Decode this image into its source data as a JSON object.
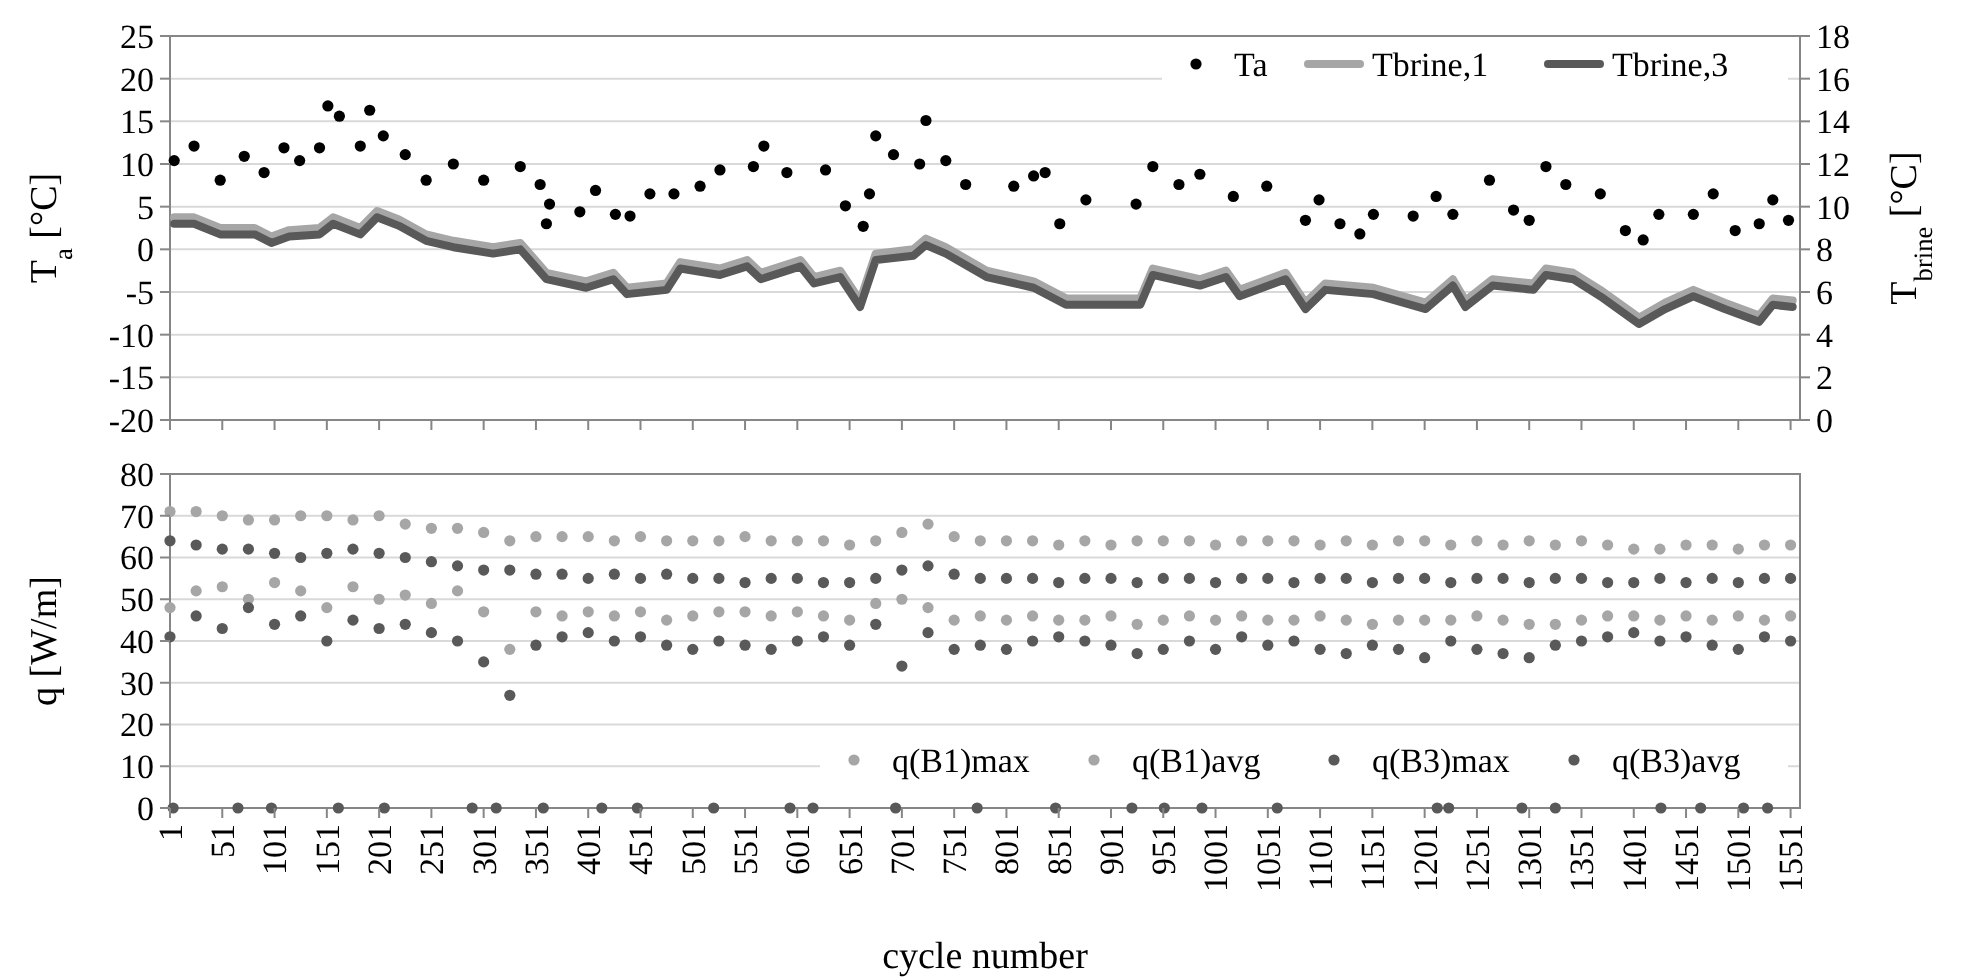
{
  "chart_data": [
    {
      "type": "line",
      "ylabel": "T$_{a}$ [°C]",
      "y2label": "T$_{brine}$ [°C]",
      "xlim": [
        1,
        1560
      ],
      "xticks": [
        1,
        51,
        101,
        151,
        201,
        251,
        301,
        351,
        401,
        451,
        501,
        551,
        601,
        651,
        701,
        751,
        801,
        851,
        901,
        951,
        1001,
        1051,
        1101,
        1151,
        1201,
        1251,
        1301,
        1351,
        1401,
        1451,
        1501,
        1551
      ],
      "ylim": [
        -20,
        25
      ],
      "yticks": [
        -20,
        -15,
        -10,
        -5,
        0,
        5,
        10,
        15,
        20,
        25
      ],
      "y2lim": [
        0,
        18
      ],
      "y2ticks": [
        0,
        2,
        4,
        6,
        8,
        10,
        12,
        14,
        16,
        18
      ],
      "grid": "y",
      "legend": "top right",
      "tick_labels": "y",
      "series": [
        {
          "name": "Ta",
          "type": "scatter",
          "marker": "circle",
          "color": "#000000",
          "x": [
            5,
            24,
            49,
            72,
            91,
            110,
            125,
            144,
            152,
            163,
            183,
            192,
            205,
            226,
            246,
            272,
            301,
            336,
            355,
            361,
            364,
            393,
            408,
            427,
            441,
            460,
            483,
            508,
            527,
            559,
            569,
            591,
            628,
            647,
            664,
            670,
            676,
            693,
            718,
            724,
            743,
            762,
            808,
            827,
            838,
            852,
            877,
            925,
            941,
            966,
            986,
            1018,
            1050,
            1087,
            1100,
            1120,
            1139,
            1152,
            1190,
            1212,
            1228,
            1263,
            1286,
            1301,
            1317,
            1336,
            1369,
            1393,
            1410,
            1425,
            1458,
            1477,
            1498,
            1521,
            1534,
            1549
          ],
          "values": [
            10.4,
            12.1,
            8.1,
            10.9,
            9.0,
            11.9,
            10.4,
            11.9,
            16.8,
            15.6,
            12.1,
            16.3,
            13.3,
            11.1,
            8.1,
            10.0,
            8.1,
            9.7,
            7.6,
            3.0,
            5.3,
            4.4,
            6.9,
            4.1,
            3.9,
            6.5,
            6.5,
            7.4,
            9.3,
            9.7,
            12.1,
            9.0,
            9.3,
            5.1,
            2.7,
            6.5,
            13.3,
            11.1,
            10.0,
            15.1,
            10.4,
            7.6,
            7.4,
            8.6,
            9.0,
            3.0,
            5.8,
            5.3,
            9.7,
            7.6,
            8.8,
            6.2,
            7.4,
            3.4,
            5.8,
            3.0,
            1.8,
            4.1,
            3.9,
            6.2,
            4.1,
            8.1,
            4.6,
            3.4,
            9.7,
            7.6,
            6.5,
            2.2,
            1.1,
            4.1,
            4.1,
            6.5,
            2.2,
            3.0,
            5.8,
            3.4
          ]
        },
        {
          "name": "Tbrine,1",
          "axis": "y2",
          "color": "#a6a6a6",
          "x": [
            5,
            24,
            49,
            82,
            98,
            115,
            144,
            157,
            183,
            199,
            220,
            246,
            272,
            310,
            336,
            361,
            399,
            425,
            438,
            476,
            489,
            527,
            553,
            566,
            604,
            617,
            642,
            661,
            676,
            712,
            724,
            743,
            782,
            827,
            858,
            929,
            941,
            986,
            1011,
            1024,
            1068,
            1087,
            1106,
            1152,
            1202,
            1228,
            1240,
            1266,
            1305,
            1317,
            1343,
            1369,
            1406,
            1431,
            1458,
            1488,
            1521,
            1534,
            1553
          ],
          "values": [
            9.5,
            9.5,
            9.0,
            9.0,
            8.6,
            8.9,
            9.0,
            9.5,
            9.0,
            9.8,
            9.4,
            8.7,
            8.4,
            8.1,
            8.3,
            6.9,
            6.5,
            6.9,
            6.2,
            6.4,
            7.4,
            7.1,
            7.5,
            6.9,
            7.5,
            6.7,
            7.0,
            5.6,
            7.8,
            8.0,
            8.5,
            8.1,
            7.0,
            6.5,
            5.7,
            5.7,
            7.1,
            6.6,
            7.0,
            6.1,
            6.9,
            5.5,
            6.4,
            6.2,
            5.5,
            6.6,
            5.6,
            6.6,
            6.4,
            7.1,
            6.9,
            6.1,
            4.8,
            5.5,
            6.1,
            5.5,
            4.9,
            5.7,
            5.6
          ]
        },
        {
          "name": "Tbrine,3",
          "axis": "y2",
          "color": "#595959",
          "x": [
            5,
            24,
            49,
            82,
            98,
            115,
            144,
            157,
            183,
            199,
            220,
            246,
            272,
            310,
            336,
            361,
            399,
            425,
            438,
            476,
            489,
            527,
            553,
            566,
            604,
            617,
            642,
            661,
            676,
            712,
            724,
            743,
            782,
            827,
            858,
            929,
            941,
            986,
            1011,
            1024,
            1068,
            1087,
            1106,
            1152,
            1202,
            1228,
            1240,
            1266,
            1305,
            1317,
            1343,
            1369,
            1406,
            1431,
            1458,
            1488,
            1521,
            1534,
            1553
          ],
          "values": [
            9.2,
            9.2,
            8.7,
            8.7,
            8.3,
            8.6,
            8.7,
            9.2,
            8.7,
            9.5,
            9.1,
            8.4,
            8.1,
            7.8,
            8.0,
            6.6,
            6.2,
            6.6,
            5.9,
            6.1,
            7.1,
            6.8,
            7.2,
            6.6,
            7.2,
            6.4,
            6.7,
            5.3,
            7.5,
            7.7,
            8.2,
            7.8,
            6.7,
            6.2,
            5.4,
            5.4,
            6.8,
            6.3,
            6.7,
            5.8,
            6.6,
            5.2,
            6.1,
            5.9,
            5.2,
            6.3,
            5.3,
            6.3,
            6.1,
            6.8,
            6.6,
            5.8,
            4.5,
            5.2,
            5.8,
            5.2,
            4.6,
            5.4,
            5.3
          ]
        }
      ]
    },
    {
      "type": "scatter",
      "ylabel": "q [W/m]",
      "xlabel": "cycle number",
      "xlim": [
        1,
        1560
      ],
      "xticks": [
        1,
        51,
        101,
        151,
        201,
        251,
        301,
        351,
        401,
        451,
        501,
        551,
        601,
        651,
        701,
        751,
        801,
        851,
        901,
        951,
        1001,
        1051,
        1101,
        1151,
        1201,
        1251,
        1301,
        1351,
        1401,
        1451,
        1501,
        1551
      ],
      "ylim": [
        0,
        80
      ],
      "yticks": [
        0,
        10,
        20,
        30,
        40,
        50,
        60,
        70,
        80
      ],
      "grid": "y",
      "legend": "bottom right",
      "marker": "circle",
      "series": [
        {
          "name": "q(B1)max",
          "color": "#a6a6a6",
          "x": [
            1,
            26,
            51,
            76,
            101,
            126,
            151,
            176,
            201,
            226,
            251,
            276,
            301,
            326,
            351,
            376,
            401,
            426,
            451,
            476,
            501,
            526,
            551,
            576,
            601,
            626,
            651,
            676,
            701,
            726,
            751,
            776,
            801,
            826,
            851,
            876,
            901,
            926,
            951,
            976,
            1001,
            1026,
            1051,
            1076,
            1101,
            1126,
            1151,
            1176,
            1201,
            1226,
            1251,
            1276,
            1301,
            1326,
            1351,
            1376,
            1401,
            1426,
            1451,
            1476,
            1501,
            1526,
            1551
          ],
          "values": [
            71,
            71,
            70,
            69,
            69,
            70,
            70,
            69,
            70,
            68,
            67,
            67,
            66,
            64,
            65,
            65,
            65,
            64,
            65,
            64,
            64,
            64,
            65,
            64,
            64,
            64,
            63,
            64,
            66,
            68,
            65,
            64,
            64,
            64,
            63,
            64,
            63,
            64,
            64,
            64,
            63,
            64,
            64,
            64,
            63,
            64,
            63,
            64,
            64,
            63,
            64,
            63,
            64,
            63,
            64,
            63,
            62,
            62,
            63,
            63,
            62,
            63,
            63
          ]
        },
        {
          "name": "q(B1)avg",
          "color": "#a6a6a6",
          "x": [
            1,
            26,
            51,
            76,
            101,
            126,
            151,
            176,
            201,
            226,
            251,
            276,
            301,
            326,
            351,
            376,
            401,
            426,
            451,
            476,
            501,
            526,
            551,
            576,
            601,
            626,
            651,
            676,
            701,
            726,
            751,
            776,
            801,
            826,
            851,
            876,
            901,
            926,
            951,
            976,
            1001,
            1026,
            1051,
            1076,
            1101,
            1126,
            1151,
            1176,
            1201,
            1226,
            1251,
            1276,
            1301,
            1326,
            1351,
            1376,
            1401,
            1426,
            1451,
            1476,
            1501,
            1526,
            1551
          ],
          "values": [
            48,
            52,
            53,
            50,
            54,
            52,
            48,
            53,
            50,
            51,
            49,
            52,
            47,
            38,
            47,
            46,
            47,
            46,
            47,
            45,
            46,
            47,
            47,
            46,
            47,
            46,
            45,
            49,
            50,
            48,
            45,
            46,
            45,
            46,
            45,
            45,
            46,
            44,
            45,
            46,
            45,
            46,
            45,
            45,
            46,
            45,
            44,
            45,
            45,
            45,
            46,
            45,
            44,
            44,
            45,
            46,
            46,
            45,
            46,
            45,
            46,
            45,
            46
          ]
        },
        {
          "name": "q(B3)max",
          "color": "#595959",
          "x": [
            1,
            26,
            51,
            76,
            101,
            126,
            151,
            176,
            201,
            226,
            251,
            276,
            301,
            326,
            351,
            376,
            401,
            426,
            451,
            476,
            501,
            526,
            551,
            576,
            601,
            626,
            651,
            676,
            701,
            726,
            751,
            776,
            801,
            826,
            851,
            876,
            901,
            926,
            951,
            976,
            1001,
            1026,
            1051,
            1076,
            1101,
            1126,
            1151,
            1176,
            1201,
            1226,
            1251,
            1276,
            1301,
            1326,
            1351,
            1376,
            1401,
            1426,
            1451,
            1476,
            1501,
            1526,
            1551,
            4,
            66,
            98,
            162,
            206,
            290,
            313,
            358,
            414,
            448,
            521,
            594,
            616,
            695,
            773,
            848,
            921,
            952,
            988,
            1060,
            1213,
            1224,
            1294,
            1326,
            1427,
            1465,
            1506,
            1529
          ],
          "values": [
            64,
            63,
            62,
            62,
            61,
            60,
            61,
            62,
            61,
            60,
            59,
            58,
            57,
            57,
            56,
            56,
            55,
            56,
            55,
            56,
            55,
            55,
            54,
            55,
            55,
            54,
            54,
            55,
            57,
            58,
            56,
            55,
            55,
            55,
            54,
            55,
            55,
            54,
            55,
            55,
            54,
            55,
            55,
            54,
            55,
            55,
            54,
            55,
            55,
            54,
            55,
            55,
            54,
            55,
            55,
            54,
            54,
            55,
            54,
            55,
            54,
            55,
            55,
            0,
            0,
            0,
            0,
            0,
            0,
            0,
            0,
            0,
            0,
            0,
            0,
            0,
            0,
            0,
            0,
            0,
            0,
            0,
            0,
            0,
            0,
            0,
            0,
            0,
            0,
            0,
            0
          ]
        },
        {
          "name": "q(B3)avg",
          "color": "#595959",
          "x": [
            1,
            26,
            51,
            76,
            101,
            126,
            151,
            176,
            201,
            226,
            251,
            276,
            301,
            326,
            351,
            376,
            401,
            426,
            451,
            476,
            501,
            526,
            551,
            576,
            601,
            626,
            651,
            676,
            701,
            726,
            751,
            776,
            801,
            826,
            851,
            876,
            901,
            926,
            951,
            976,
            1001,
            1026,
            1051,
            1076,
            1101,
            1126,
            1151,
            1176,
            1201,
            1226,
            1251,
            1276,
            1301,
            1326,
            1351,
            1376,
            1401,
            1426,
            1451,
            1476,
            1501,
            1526,
            1551
          ],
          "values": [
            41,
            46,
            43,
            48,
            44,
            46,
            40,
            45,
            43,
            44,
            42,
            40,
            35,
            27,
            39,
            41,
            42,
            40,
            41,
            39,
            38,
            40,
            39,
            38,
            40,
            41,
            39,
            44,
            34,
            42,
            38,
            39,
            38,
            40,
            41,
            40,
            39,
            37,
            38,
            40,
            38,
            41,
            39,
            40,
            38,
            37,
            39,
            38,
            36,
            40,
            38,
            37,
            36,
            39,
            40,
            41,
            42,
            40,
            41,
            39,
            38,
            41,
            40
          ]
        }
      ]
    }
  ]
}
